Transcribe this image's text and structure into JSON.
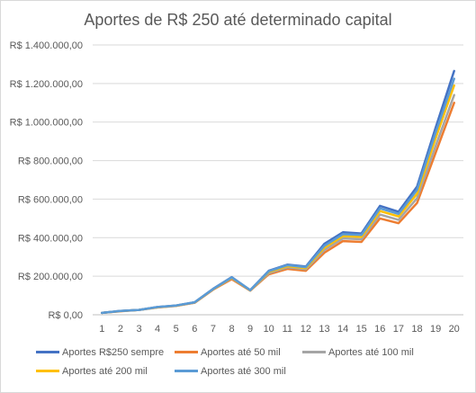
{
  "chart_data": {
    "type": "line",
    "title": "Aportes de R$ 250 até determinado capital",
    "xlabel": "",
    "ylabel": "",
    "categories": [
      "1",
      "2",
      "3",
      "4",
      "5",
      "6",
      "7",
      "8",
      "9",
      "10",
      "11",
      "12",
      "13",
      "14",
      "15",
      "16",
      "17",
      "18",
      "19",
      "20"
    ],
    "y_tick_labels": [
      "R$ 0,00",
      "R$ 200.000,00",
      "R$ 400.000,00",
      "R$ 600.000,00",
      "R$ 800.000,00",
      "R$ 1.000.000,00",
      "R$ 1.200.000,00",
      "R$ 1.400.000,00"
    ],
    "ylim": [
      0,
      1400000
    ],
    "grid": true,
    "legend_position": "bottom",
    "series": [
      {
        "name": "Aportes R$250 sempre",
        "color": "#4472c4",
        "values": [
          10000,
          20000,
          25000,
          40000,
          48000,
          65000,
          135000,
          195000,
          128000,
          228000,
          260000,
          250000,
          368000,
          428000,
          422000,
          565000,
          535000,
          665000,
          970000,
          1265000
        ]
      },
      {
        "name": "Aportes até 50 mil",
        "color": "#ed7d31",
        "values": [
          10000,
          18000,
          25000,
          38000,
          46000,
          62000,
          130000,
          185000,
          125000,
          210000,
          238000,
          228000,
          322000,
          382000,
          378000,
          500000,
          475000,
          580000,
          840000,
          1100000
        ]
      },
      {
        "name": "Aportes até 100 mil",
        "color": "#a5a5a5",
        "values": [
          10000,
          19000,
          25000,
          39000,
          47000,
          63000,
          132000,
          190000,
          126000,
          216000,
          246000,
          236000,
          336000,
          396000,
          392000,
          520000,
          493000,
          605000,
          875000,
          1140000
        ]
      },
      {
        "name": "Aportes até 200 mil",
        "color": "#ffc000",
        "values": [
          10000,
          19000,
          25000,
          39000,
          47000,
          64000,
          133000,
          192000,
          127000,
          222000,
          252000,
          242000,
          348000,
          408000,
          404000,
          538000,
          510000,
          628000,
          915000,
          1190000
        ]
      },
      {
        "name": "Aportes até 300 mil",
        "color": "#5b9bd5",
        "values": [
          10000,
          20000,
          25000,
          40000,
          48000,
          65000,
          134000,
          194000,
          128000,
          226000,
          257000,
          247000,
          358000,
          418000,
          414000,
          552000,
          523000,
          648000,
          945000,
          1225000
        ]
      }
    ]
  }
}
